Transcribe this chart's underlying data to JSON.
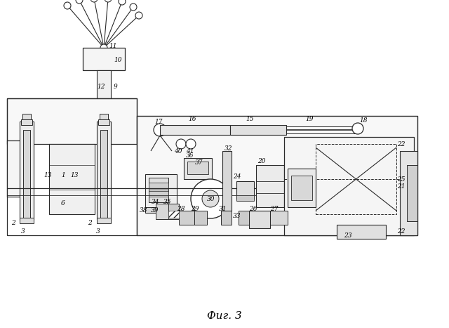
{
  "title": "Фиг. 3",
  "bg_color": "#ffffff",
  "line_color": "#2a2a2a",
  "fig_width": 6.4,
  "fig_height": 4.67,
  "dpi": 100
}
